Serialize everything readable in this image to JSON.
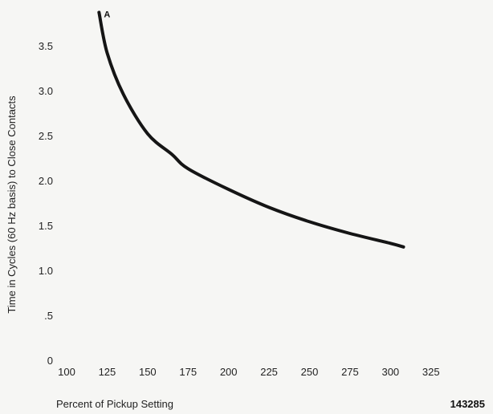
{
  "chart_data": {
    "type": "line",
    "title": "",
    "xlabel": "Percent of Pickup Setting",
    "ylabel": "Time in Cycles (60 Hz basis) to Close Contacts",
    "xlim": [
      100,
      340
    ],
    "ylim": [
      0,
      4.0
    ],
    "x_ticks": [
      100,
      125,
      150,
      175,
      200,
      225,
      250,
      275,
      300,
      325
    ],
    "x_tick_labels": [
      "100",
      "125",
      "150",
      "175",
      "200",
      "225",
      "250",
      "275",
      "300",
      "325"
    ],
    "y_ticks": [
      0,
      0.5,
      1.0,
      1.5,
      2.0,
      2.5,
      3.0,
      3.5
    ],
    "y_tick_labels": [
      "0",
      ".5",
      "1.0",
      "1.5",
      "2.0",
      "2.5",
      "3.0",
      "3.5"
    ],
    "grid": false,
    "series": [
      {
        "name": "A",
        "color": "#151515",
        "x": [
          120,
          125,
          135,
          150,
          165,
          175,
          200,
          225,
          250,
          275,
          300,
          308
        ],
        "y": [
          3.88,
          3.43,
          2.97,
          2.53,
          2.3,
          2.14,
          1.91,
          1.71,
          1.55,
          1.42,
          1.31,
          1.27
        ]
      }
    ]
  },
  "figure_number": "143285"
}
